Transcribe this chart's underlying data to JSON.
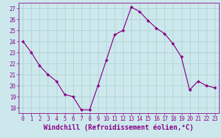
{
  "x": [
    0,
    1,
    2,
    3,
    4,
    5,
    6,
    7,
    8,
    9,
    10,
    11,
    12,
    13,
    14,
    15,
    16,
    17,
    18,
    19,
    20,
    21,
    22,
    23
  ],
  "y": [
    24,
    23,
    21.8,
    21,
    20.4,
    19.2,
    19,
    17.8,
    17.8,
    20,
    22.3,
    24.6,
    25,
    27.1,
    26.7,
    25.9,
    25.2,
    24.7,
    23.8,
    22.6,
    19.6,
    20.4,
    20,
    19.8
  ],
  "line_color": "#880088",
  "marker_color": "#880088",
  "bg_color": "#cce8ec",
  "grid_color": "#aacccc",
  "xlabel": "Windchill (Refroidissement éolien,°C)",
  "xlabel_color": "#880088",
  "tick_color": "#880088",
  "ylim": [
    17.5,
    27.5
  ],
  "yticks": [
    18,
    19,
    20,
    21,
    22,
    23,
    24,
    25,
    26,
    27
  ],
  "xticks": [
    0,
    1,
    2,
    3,
    4,
    5,
    6,
    7,
    8,
    9,
    10,
    11,
    12,
    13,
    14,
    15,
    16,
    17,
    18,
    19,
    20,
    21,
    22,
    23
  ],
  "tick_fontsize": 5.5,
  "xlabel_fontsize": 7.0
}
